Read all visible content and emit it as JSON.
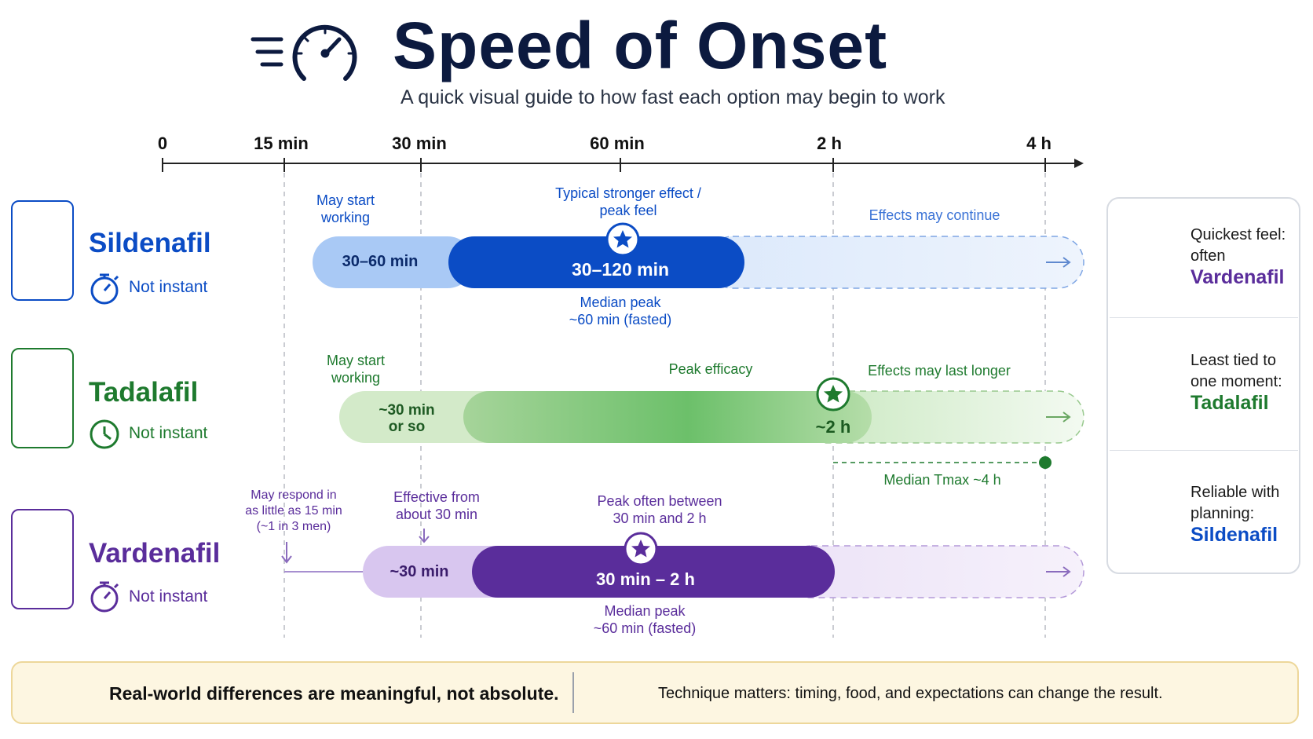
{
  "title": "Speed of Onset",
  "subtitle": "A quick visual guide to how fast each option may begin to work",
  "icons": [
    "speedometer-icon",
    "pill-icon",
    "stopwatch-icon",
    "clock-icon",
    "lightning-icon",
    "clipboard-icon",
    "warning-icon",
    "target-icon",
    "star-icon",
    "arrow-right-icon"
  ],
  "colors": {
    "sildenafil": "#0b4cc5",
    "tadalafil": "#1e7a2e",
    "vardenafil": "#5a2d9b",
    "title": "#0c1a3f",
    "footer_bg": "#fdf6e1"
  },
  "timeline": {
    "ticks": [
      "0",
      "15 min",
      "30 min",
      "60 min",
      "2 h",
      "4 h"
    ]
  },
  "drugs": {
    "sildenafil": {
      "name": "Sildenafil",
      "status": "Not instant",
      "start_label": "May start\nworking",
      "peak_label": "Typical stronger effect /\npeak feel",
      "continue_label": "Effects may continue",
      "light_range": "30–60 min",
      "main_range": "30–120 min",
      "median_label": "Median peak\n~60 min (fasted)"
    },
    "tadalafil": {
      "name": "Tadalafil",
      "status": "Not instant",
      "start_label": "May start\nworking",
      "peak_label": "Peak efficacy",
      "continue_label": "Effects may last longer",
      "light_range": "~30 min\nor so",
      "main_range": "~2 h",
      "tmax_label": "Median Tmax ~4 h"
    },
    "vardenafil": {
      "name": "Vardenafil",
      "status": "Not instant",
      "early_label": "May respond in\nas little as 15 min\n(~1 in 3 men)",
      "effective_label": "Effective from\nabout 30 min",
      "peak_label": "Peak often between\n30 min and 2 h",
      "light_range": "~30 min",
      "main_range": "30 min – 2 h",
      "median_label": "Median peak\n~60 min (fasted)"
    }
  },
  "side_panel": [
    {
      "text": "Quickest feel:\noften",
      "drug": "Vardenafil",
      "icon": "lightning-icon"
    },
    {
      "text": "Least tied to\none moment:",
      "drug": "Tadalafil",
      "icon": "clock-icon"
    },
    {
      "text": "Reliable with\nplanning:",
      "drug": "Sildenafil",
      "icon": "clipboard-icon"
    }
  ],
  "footer": {
    "left": "Real-world differences are meaningful, not absolute.",
    "right": "Technique matters: timing, food, and expectations can change the result."
  }
}
